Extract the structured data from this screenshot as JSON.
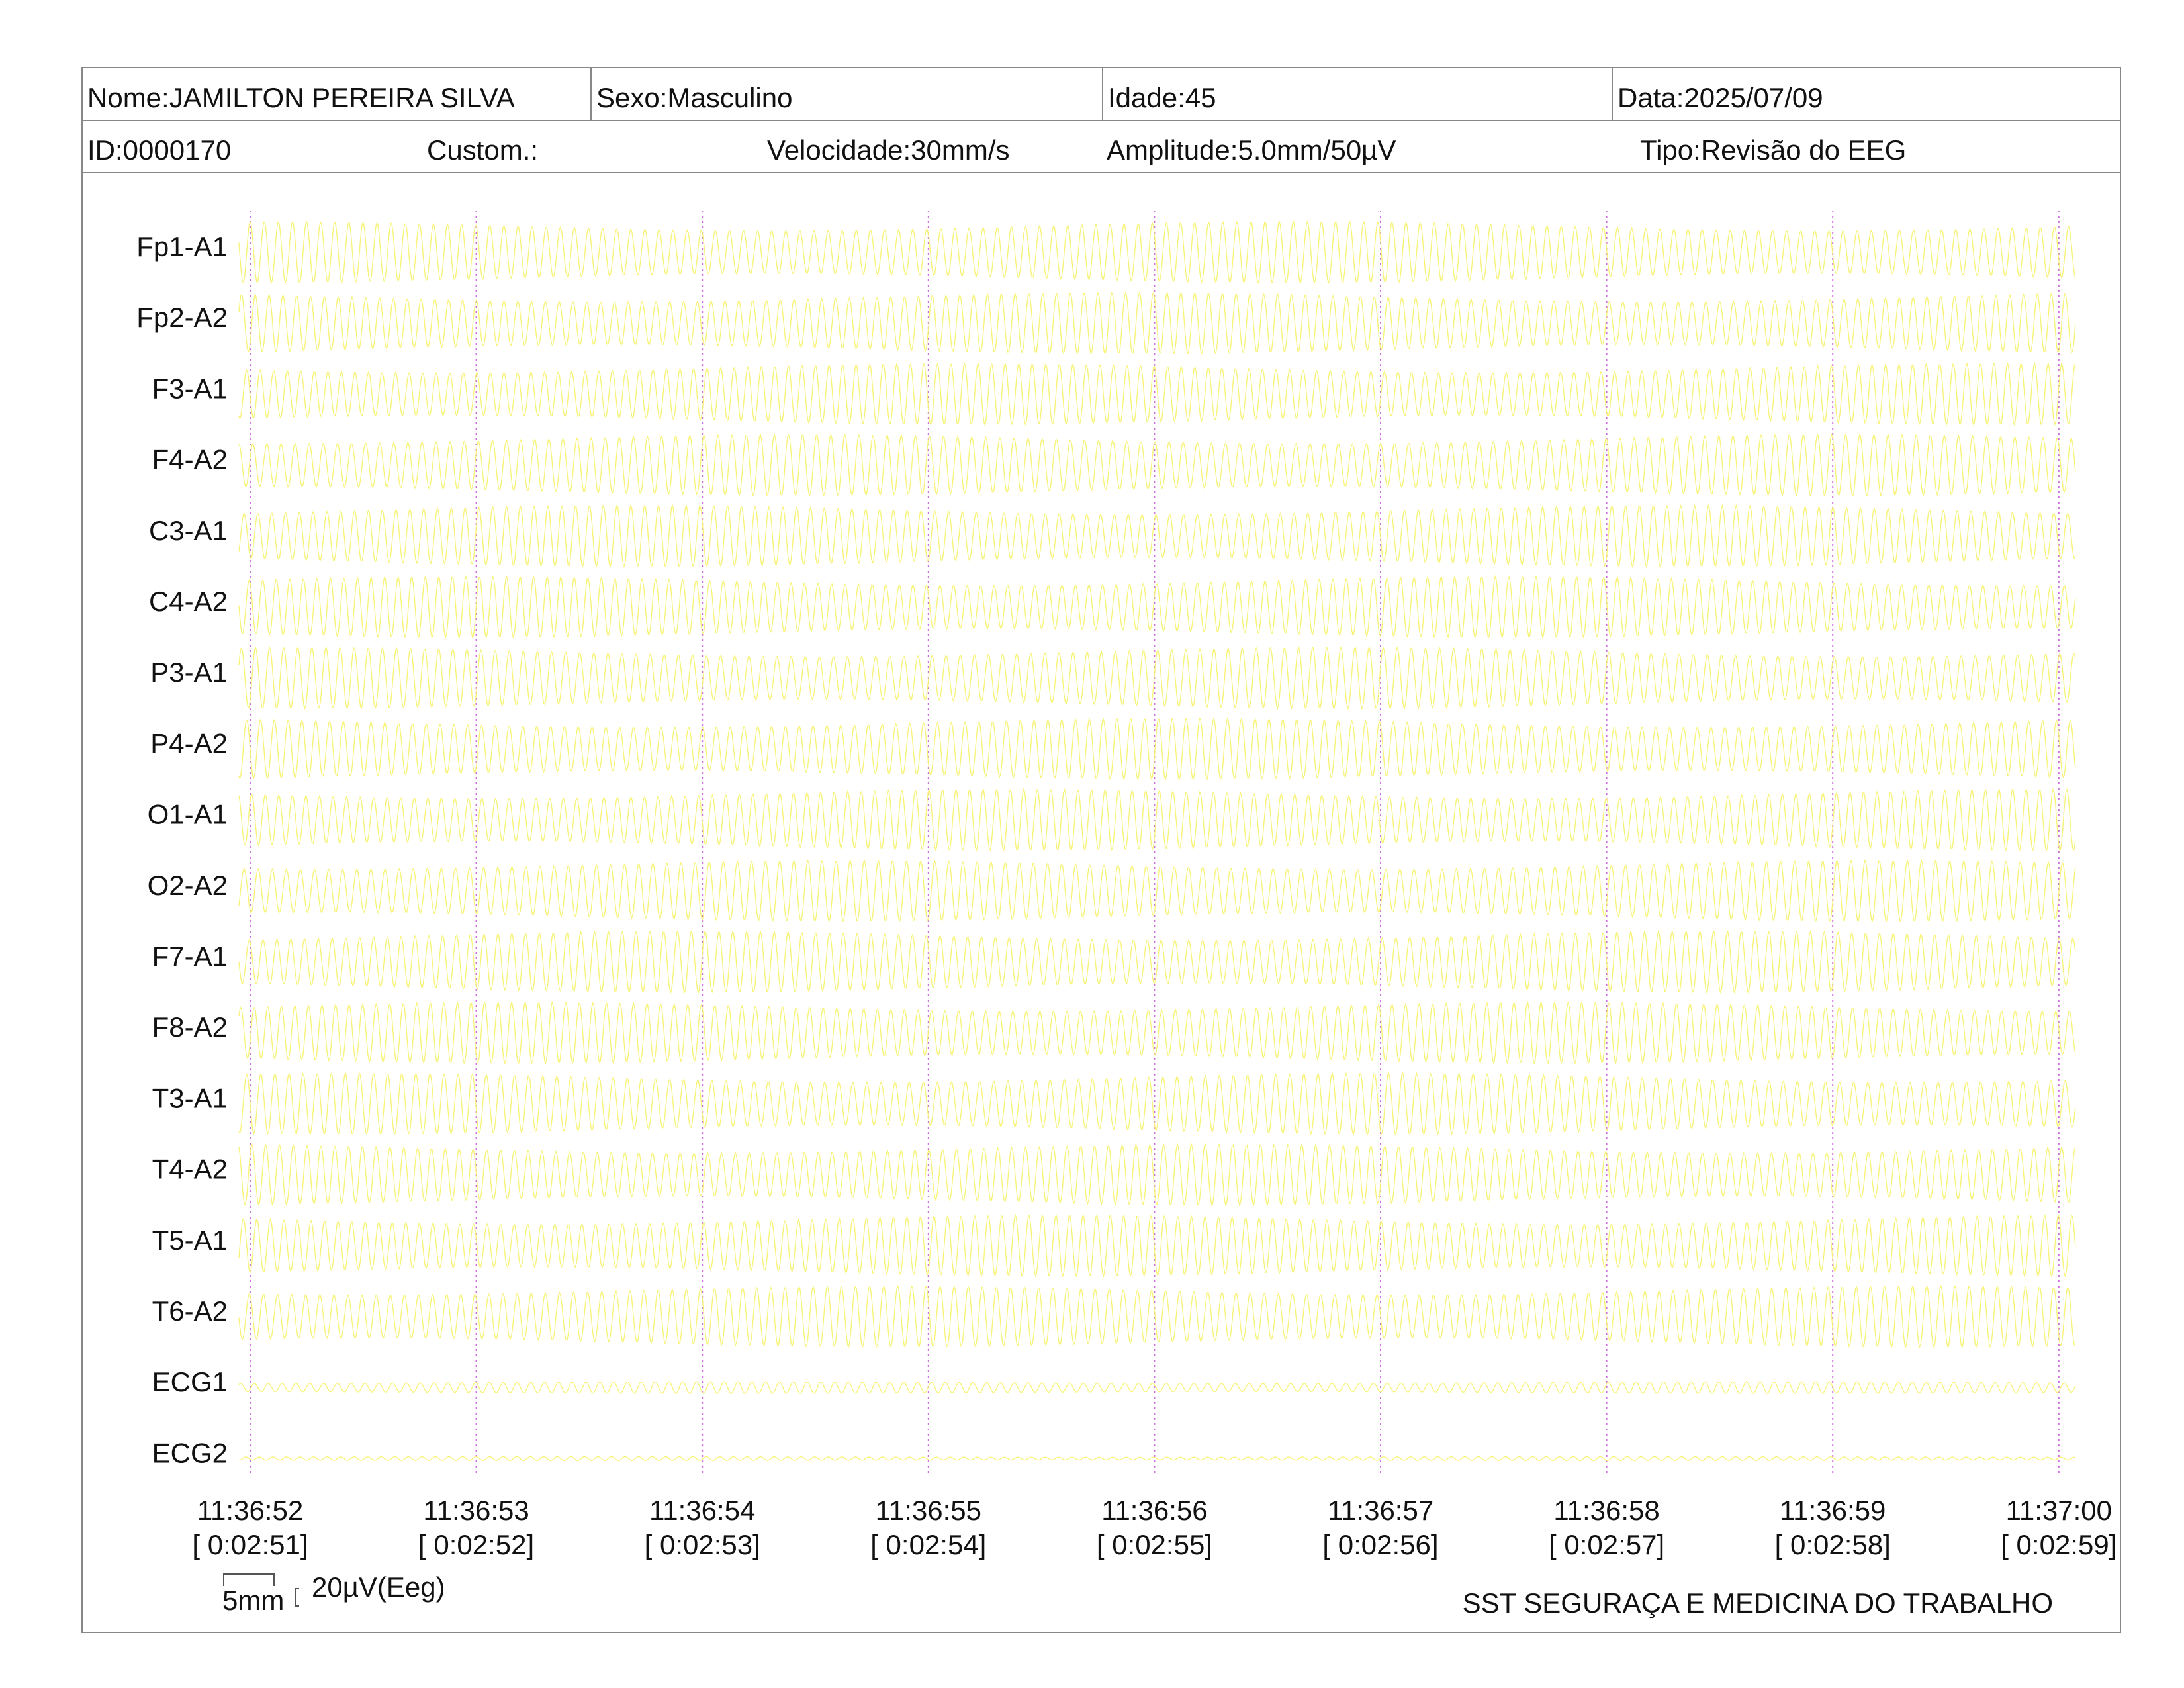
{
  "header": {
    "nome": "Nome:JAMILTON PEREIRA SILVA",
    "sexo": "Sexo:Masculino",
    "idade": "Idade:45",
    "data": "Data:2025/07/09",
    "id": "ID:0000170",
    "custom": "Custom.:",
    "velocidade": "Velocidade:30mm/s",
    "amplitude": "Amplitude:5.0mm/50µV",
    "tipo": "Tipo:Revisão do EEG"
  },
  "channels": [
    "Fp1-A1",
    "Fp2-A2",
    "F3-A1",
    "F4-A2",
    "C3-A1",
    "C4-A2",
    "P3-A1",
    "P4-A2",
    "O1-A1",
    "O2-A2",
    "F7-A1",
    "F8-A2",
    "T3-A1",
    "T4-A2",
    "T5-A1",
    "T6-A2",
    "ECG1",
    "ECG2"
  ],
  "time_labels": [
    {
      "clock": "11:36:52",
      "elapsed": "[ 0:02:51]"
    },
    {
      "clock": "11:36:53",
      "elapsed": "[ 0:02:52]"
    },
    {
      "clock": "11:36:54",
      "elapsed": "[ 0:02:53]"
    },
    {
      "clock": "11:36:55",
      "elapsed": "[ 0:02:54]"
    },
    {
      "clock": "11:36:56",
      "elapsed": "[ 0:02:55]"
    },
    {
      "clock": "11:36:57",
      "elapsed": "[ 0:02:56]"
    },
    {
      "clock": "11:36:58",
      "elapsed": "[ 0:02:57]"
    },
    {
      "clock": "11:36:59",
      "elapsed": "[ 0:02:58]"
    },
    {
      "clock": "11:37:00",
      "elapsed": "[ 0:02:59]"
    }
  ],
  "scale": {
    "length": "5mm",
    "amplitude": "20µV(Eeg)"
  },
  "footer": "SST SEGURAÇA E MEDICINA DO TRABALHO"
}
